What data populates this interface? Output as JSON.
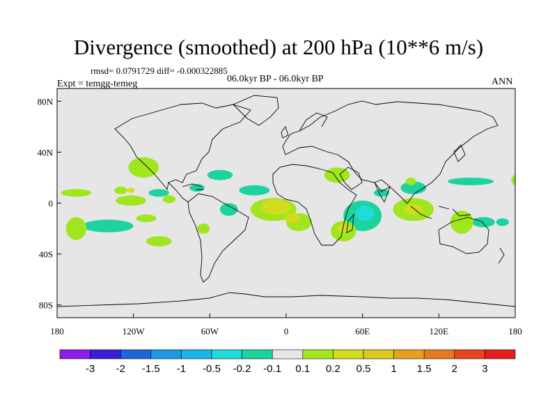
{
  "chart_data": {
    "type": "contour-map",
    "title": "Divergence (smoothed) at 200 hPa (10**6 m/s)",
    "stats": "rmsd= 0.0791729 diff= -0.000322885",
    "experiment": "Expt = temgg-temeg",
    "period": "06.0kyr BP - 06.0kyr BP",
    "season": "ANN",
    "xlim": [
      -180,
      180
    ],
    "ylim": [
      -90,
      90
    ],
    "x_ticks": [
      {
        "value": -180,
        "label": "180"
      },
      {
        "value": -120,
        "label": "120W"
      },
      {
        "value": -60,
        "label": "60W"
      },
      {
        "value": 0,
        "label": "0"
      },
      {
        "value": 60,
        "label": "60E"
      },
      {
        "value": 120,
        "label": "120E"
      },
      {
        "value": 180,
        "label": "180"
      }
    ],
    "y_ticks": [
      {
        "value": 80,
        "label": "80N"
      },
      {
        "value": 40,
        "label": "40N"
      },
      {
        "value": 0,
        "label": "0"
      },
      {
        "value": -40,
        "label": "40S"
      },
      {
        "value": -80,
        "label": "80S"
      }
    ],
    "colorbar": {
      "colors": [
        "#8b1ee6",
        "#3a1ed8",
        "#1e64dc",
        "#1e96e6",
        "#1eb4e6",
        "#1edcdc",
        "#1ed2a0",
        "#e6e6e6",
        "#a0e61e",
        "#d2dc1e",
        "#dcc81e",
        "#e6a01e",
        "#e6781e",
        "#e6461e",
        "#e61e1e"
      ],
      "labels": [
        "-3",
        "-2",
        "-1.5",
        "-1",
        "-0.5",
        "-0.2",
        "-0.1",
        "0.1",
        "0.2",
        "0.5",
        "1",
        "1.5",
        "2",
        "3"
      ]
    },
    "fields": [
      {
        "cls": 6,
        "lon": -100,
        "lat": 8,
        "rx": 8,
        "ry": 3
      },
      {
        "cls": 6,
        "lon": -70,
        "lat": 12,
        "rx": 6,
        "ry": 3
      },
      {
        "cls": 6,
        "lon": -52,
        "lat": 22,
        "rx": 10,
        "ry": 4
      },
      {
        "cls": 6,
        "lon": -45,
        "lat": -5,
        "rx": 7,
        "ry": 5
      },
      {
        "cls": 6,
        "lon": -140,
        "lat": -18,
        "rx": 20,
        "ry": 5
      },
      {
        "cls": 6,
        "lon": -25,
        "lat": 10,
        "rx": 12,
        "ry": 4
      },
      {
        "cls": 6,
        "lon": 60,
        "lat": -10,
        "rx": 15,
        "ry": 12
      },
      {
        "cls": 5,
        "lon": 62,
        "lat": -8,
        "rx": 7,
        "ry": 6
      },
      {
        "cls": 6,
        "lon": 100,
        "lat": 12,
        "rx": 10,
        "ry": 5
      },
      {
        "cls": 6,
        "lon": 75,
        "lat": 8,
        "rx": 6,
        "ry": 3
      },
      {
        "cls": 6,
        "lon": 145,
        "lat": 17,
        "rx": 18,
        "ry": 3
      },
      {
        "cls": 6,
        "lon": 155,
        "lat": -15,
        "rx": 9,
        "ry": 4
      },
      {
        "cls": 6,
        "lon": 170,
        "lat": -15,
        "rx": 5,
        "ry": 3
      },
      {
        "cls": 8,
        "lon": -165,
        "lat": 8,
        "rx": 12,
        "ry": 3
      },
      {
        "cls": 8,
        "lon": -165,
        "lat": -20,
        "rx": 8,
        "ry": 9
      },
      {
        "cls": 8,
        "lon": -122,
        "lat": 2,
        "rx": 12,
        "ry": 4
      },
      {
        "cls": 8,
        "lon": -112,
        "lat": 28,
        "rx": 12,
        "ry": 8
      },
      {
        "cls": 8,
        "lon": -130,
        "lat": 10,
        "rx": 5,
        "ry": 3
      },
      {
        "cls": 8,
        "lon": -110,
        "lat": -12,
        "rx": 8,
        "ry": 3
      },
      {
        "cls": 8,
        "lon": -100,
        "lat": -30,
        "rx": 10,
        "ry": 4
      },
      {
        "cls": 8,
        "lon": -92,
        "lat": 3,
        "rx": 5,
        "ry": 3
      },
      {
        "cls": 8,
        "lon": -65,
        "lat": -20,
        "rx": 5,
        "ry": 4
      },
      {
        "cls": 8,
        "lon": -10,
        "lat": -5,
        "rx": 18,
        "ry": 9
      },
      {
        "cls": 8,
        "lon": 10,
        "lat": -15,
        "rx": 10,
        "ry": 7
      },
      {
        "cls": 8,
        "lon": 45,
        "lat": -22,
        "rx": 10,
        "ry": 8
      },
      {
        "cls": 8,
        "lon": 40,
        "lat": 22,
        "rx": 10,
        "ry": 6
      },
      {
        "cls": 8,
        "lon": 100,
        "lat": -5,
        "rx": 16,
        "ry": 9
      },
      {
        "cls": 8,
        "lon": 138,
        "lat": -15,
        "rx": 9,
        "ry": 9
      },
      {
        "cls": 8,
        "lon": 98,
        "lat": 17,
        "rx": 4,
        "ry": 3
      },
      {
        "cls": 8,
        "lon": 180,
        "lat": 18,
        "rx": 3,
        "ry": 4
      },
      {
        "cls": 9,
        "lon": -122,
        "lat": 10,
        "rx": 3,
        "ry": 2
      },
      {
        "cls": 9,
        "lon": -8,
        "lat": -3,
        "rx": 12,
        "ry": 6
      },
      {
        "cls": 9,
        "lon": 5,
        "lat": -12,
        "rx": 6,
        "ry": 4
      },
      {
        "cls": 9,
        "lon": 100,
        "lat": -5,
        "rx": 8,
        "ry": 4
      },
      {
        "cls": 9,
        "lon": 45,
        "lat": -20,
        "rx": 5,
        "ry": 3
      }
    ]
  }
}
